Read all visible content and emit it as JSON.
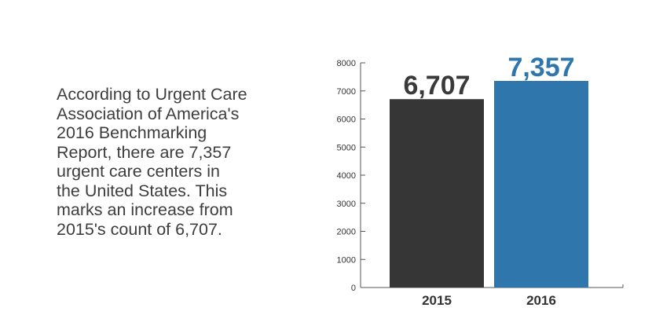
{
  "description": {
    "lines": [
      "According to Urgent Care",
      "Association of America's",
      "2016 Benchmarking",
      "Report, there are 7,357",
      "urgent care centers in",
      "the United States. This",
      "marks an increase from",
      "2015's count of 6,707."
    ]
  },
  "chart_data": {
    "type": "bar",
    "categories": [
      "2015",
      "2016"
    ],
    "values": [
      6707,
      7357
    ],
    "data_labels": [
      "6,707",
      "7,357"
    ],
    "title": "",
    "xlabel": "",
    "ylabel": "",
    "ylim": [
      0,
      8000
    ],
    "yticks": [
      0,
      1000,
      2000,
      3000,
      4000,
      5000,
      6000,
      7000,
      8000
    ],
    "grid": false,
    "legend": "none",
    "bar_colors": [
      "#363636",
      "#2e76ab"
    ],
    "label_colors": [
      "#3a3a3a",
      "#2e76ab"
    ]
  }
}
